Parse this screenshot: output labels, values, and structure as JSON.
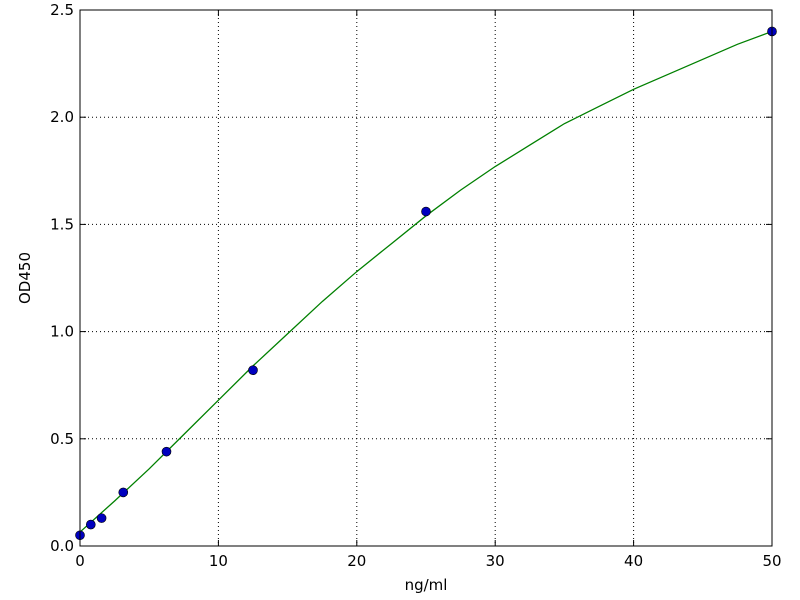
{
  "chart_data": {
    "type": "scatter",
    "xlabel": "ng/ml",
    "ylabel": "OD450",
    "xlim": [
      0,
      50
    ],
    "ylim": [
      0,
      2.5
    ],
    "xticks": [
      0,
      10,
      20,
      30,
      40,
      50
    ],
    "yticks": [
      {
        "value": 0,
        "label": "0.0"
      },
      0.5,
      {
        "value": 1,
        "label": "1.0"
      },
      1.5,
      {
        "value": 2,
        "label": "2.0"
      },
      2.5
    ],
    "grid": true,
    "series": [
      {
        "type": "line",
        "color": "#008000",
        "x": [
          0,
          2.5,
          5,
          7.5,
          10,
          12.5,
          15,
          17.5,
          20,
          22.5,
          25,
          27.5,
          30,
          32.5,
          35,
          37.5,
          40,
          42.5,
          45,
          47.5,
          50
        ],
        "values": [
          0.065,
          0.21,
          0.36,
          0.52,
          0.68,
          0.84,
          0.99,
          1.14,
          1.28,
          1.41,
          1.54,
          1.66,
          1.77,
          1.87,
          1.97,
          2.05,
          2.13,
          2.2,
          2.27,
          2.34,
          2.4
        ]
      },
      {
        "type": "scatter",
        "color": "#0000bf",
        "x": [
          0,
          0.78,
          1.56,
          3.125,
          6.25,
          12.5,
          25,
          50
        ],
        "values": [
          0.05,
          0.1,
          0.13,
          0.25,
          0.44,
          0.82,
          1.56,
          2.4
        ]
      }
    ]
  }
}
